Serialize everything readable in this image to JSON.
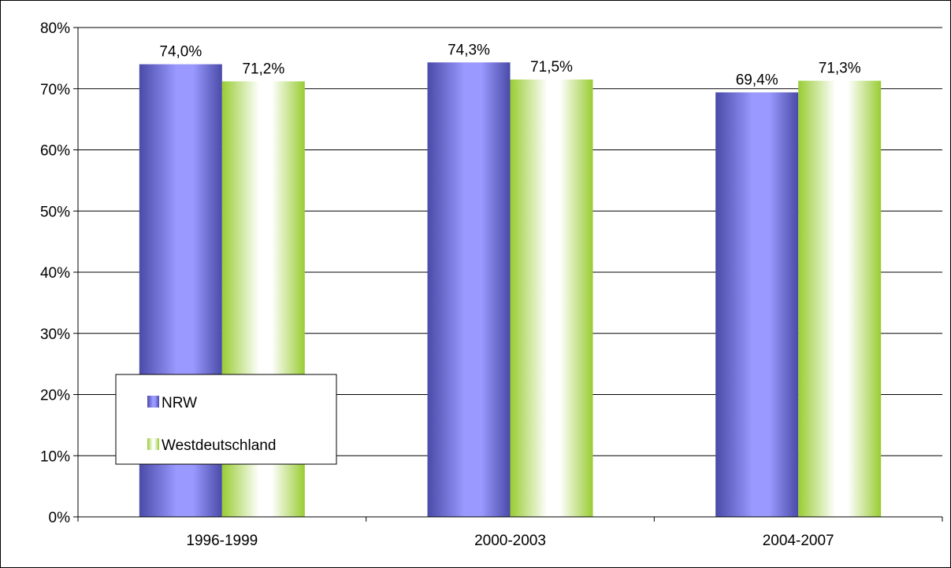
{
  "chart_data": {
    "type": "bar",
    "categories": [
      "1996-1999",
      "2000-2003",
      "2004-2007"
    ],
    "series": [
      {
        "name": "NRW",
        "values": [
          74.0,
          74.3,
          69.4
        ],
        "labels": [
          "74,0%",
          "74,3%",
          "69,4%"
        ],
        "color": "#9999ff"
      },
      {
        "name": "Westdeutschland",
        "values": [
          71.2,
          71.5,
          71.3
        ],
        "labels": [
          "71,2%",
          "71,5%",
          "71,3%"
        ],
        "color": "#99cc33"
      }
    ],
    "yticks": [
      "0%",
      "10%",
      "20%",
      "30%",
      "40%",
      "50%",
      "60%",
      "70%",
      "80%"
    ],
    "ylim": [
      0,
      80
    ],
    "ystep": 10,
    "grid": true,
    "legend_position": "bottom-left"
  }
}
